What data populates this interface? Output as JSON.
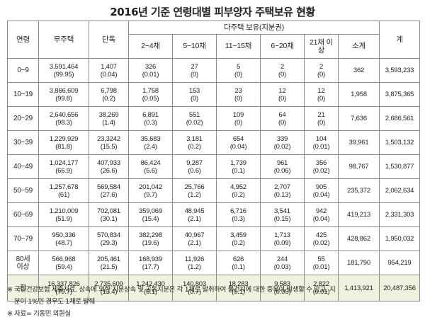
{
  "title": "2016년 기준 연령대별 피부양자 주택보유 현황",
  "headers": {
    "age": "연령",
    "no_house": "무주택",
    "single": "단독",
    "multi_group": "다주택 보유(지분권)",
    "multi": [
      "2~4채",
      "5~10채",
      "11~15채",
      "6~20채",
      "21채 이상"
    ],
    "subtotal": "소계",
    "total": "계"
  },
  "rows": [
    {
      "age": "0~9",
      "no_house": "3,591,464",
      "no_house_pct": "(99.95)",
      "single": "1,407",
      "single_pct": "(0.04)",
      "multi": [
        [
          "326",
          "(0.01)"
        ],
        [
          "27",
          "(0)"
        ],
        [
          "5",
          "(0)"
        ],
        [
          "2",
          "(0)"
        ],
        [
          "2",
          "(0)"
        ]
      ],
      "subtotal": "362",
      "total": "3,593,233"
    },
    {
      "age": "10~19",
      "no_house": "3,866,609",
      "no_house_pct": "(99.8)",
      "single": "6,798",
      "single_pct": "(0.2)",
      "multi": [
        [
          "1,758",
          "(0.05)"
        ],
        [
          "153",
          "(0)"
        ],
        [
          "23",
          "(0)"
        ],
        [
          "12",
          "(0)"
        ],
        [
          "12",
          "(0)"
        ]
      ],
      "subtotal": "1,958",
      "total": "3,875,365"
    },
    {
      "age": "20~29",
      "no_house": "2,640,656",
      "no_house_pct": "(98.3)",
      "single": "38,269",
      "single_pct": "(1.4)",
      "multi": [
        [
          "6,891",
          "(0.3)"
        ],
        [
          "551",
          "(0.02)"
        ],
        [
          "109",
          "(0)"
        ],
        [
          "64",
          "(0)"
        ],
        [
          "21",
          "(0)"
        ]
      ],
      "subtotal": "7,636",
      "total": "2,686,561"
    },
    {
      "age": "30~39",
      "no_house": "1,229,929",
      "no_house_pct": "(81.8)",
      "single": "23,3242",
      "single_pct": "(15.5)",
      "multi": [
        [
          "35,683",
          "(2.4)"
        ],
        [
          "3,181",
          "(0.2)"
        ],
        [
          "654",
          "(0.04)"
        ],
        [
          "339",
          "(0.02)"
        ],
        [
          "104",
          "(0.01)"
        ]
      ],
      "subtotal": "39,961",
      "total": "1,503,132"
    },
    {
      "age": "40~49",
      "no_house": "1,024,177",
      "no_house_pct": "(66.9)",
      "single": "407,933",
      "single_pct": "(26.6)",
      "multi": [
        [
          "86,424",
          "(5.6)"
        ],
        [
          "9,287",
          "(0.6)"
        ],
        [
          "1,739",
          "(0.1)"
        ],
        [
          "961",
          "(0.06)"
        ],
        [
          "356",
          "(0.02)"
        ]
      ],
      "subtotal": "98,767",
      "total": "1,530,877"
    },
    {
      "age": "50~59",
      "no_house": "1,257,678",
      "no_house_pct": "(61)",
      "single": "569,584",
      "single_pct": "(27.6)",
      "multi": [
        [
          "201,042",
          "(9.7)"
        ],
        [
          "25,766",
          "(1.2)"
        ],
        [
          "4,952",
          "(0.2)"
        ],
        [
          "2,707",
          "(0.13)"
        ],
        [
          "905",
          "(0.04)"
        ]
      ],
      "subtotal": "235,372",
      "total": "2,062,634"
    },
    {
      "age": "60~69",
      "no_house": "1,210,009",
      "no_house_pct": "(51.9)",
      "single": "702,081",
      "single_pct": "(30.1)",
      "multi": [
        [
          "359,069",
          "(15.4)"
        ],
        [
          "48,945",
          "(2.1)"
        ],
        [
          "6,716",
          "(0.3)"
        ],
        [
          "3,541",
          "(0.15)"
        ],
        [
          "942",
          "(0.04)"
        ]
      ],
      "subtotal": "419,213",
      "total": "2,331,303"
    },
    {
      "age": "70~79",
      "no_house": "950,336",
      "no_house_pct": "(48.7)",
      "single": "570,834",
      "single_pct": "(29.3)",
      "multi": [
        [
          "382,298",
          "(19.6)"
        ],
        [
          "40,967",
          "(2.1)"
        ],
        [
          "3,459",
          "(0.2)"
        ],
        [
          "1,713",
          "(0.09)"
        ],
        [
          "425",
          "(0.02)"
        ]
      ],
      "subtotal": "428,862",
      "total": "1,950,032"
    },
    {
      "age": "80세 이상",
      "no_house": "566,968",
      "no_house_pct": "(59.4)",
      "single": "205,461",
      "single_pct": "(21.5)",
      "multi": [
        [
          "168,939",
          "(17.7)"
        ],
        [
          "11,926",
          "(1.2)"
        ],
        [
          "626",
          "(0.1)"
        ],
        [
          "244",
          "(0.03)"
        ],
        [
          "55",
          "(0.01)"
        ]
      ],
      "subtotal": "181,790",
      "total": "954,219"
    },
    {
      "age": "합",
      "no_house": "16,337,826",
      "no_house_pct": "(79.7)",
      "single": "2,735,609",
      "single_pct": "(13.4)",
      "multi": [
        [
          "1,242,430",
          "(6.1)"
        ],
        [
          "140,803",
          "(0.7)"
        ],
        [
          "18,283",
          "(0.1)"
        ],
        [
          "9,583",
          "(0.05)"
        ],
        [
          "2,822",
          "(0.01)"
        ]
      ],
      "subtotal": "1,413,921",
      "total": "20,487,356"
    }
  ],
  "footnotes": [
    "※ 국민건강보험 제출자료. 상속에 의한 지분상속 및 공동지분은 각 1채로 발취하여 물건지에 대한 중복이 발생할 수 있고, 지",
    "분이 1%인 경우도 1채로 발췌",
    "※ 자료= 기동민 의원실"
  ]
}
